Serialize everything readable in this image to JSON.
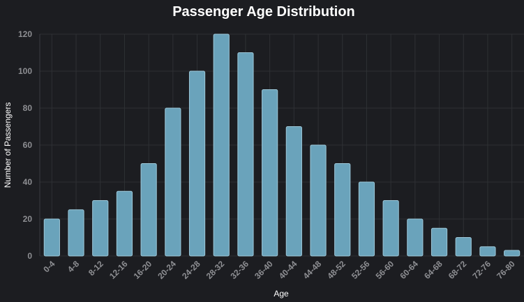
{
  "colors": {
    "background": "#1c1d21",
    "bar_fill": "#6aa3bb",
    "bar_stroke": "#9cc7d8",
    "grid": "#2e3034",
    "tick_text": "#8e8f93",
    "title_text": "#ffffff"
  },
  "chart_data": {
    "type": "bar",
    "title": "Passenger Age Distribution",
    "xlabel": "Age",
    "ylabel": "Number of Passengers",
    "categories": [
      "0-4",
      "4-8",
      "8-12",
      "12-16",
      "16-20",
      "20-24",
      "24-28",
      "28-32",
      "32-36",
      "36-40",
      "40-44",
      "44-48",
      "48-52",
      "52-56",
      "56-60",
      "60-64",
      "64-68",
      "68-72",
      "72-76",
      "76-80"
    ],
    "values": [
      20,
      25,
      30,
      35,
      50,
      80,
      100,
      120,
      110,
      90,
      70,
      60,
      50,
      40,
      30,
      20,
      15,
      10,
      5,
      3
    ],
    "ylim": [
      0,
      120
    ],
    "yticks": [
      0,
      20,
      40,
      60,
      80,
      100,
      120
    ],
    "grid": true
  }
}
